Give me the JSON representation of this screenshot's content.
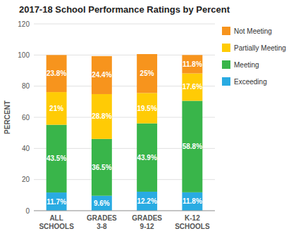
{
  "chart_data": {
    "type": "bar",
    "stacked": true,
    "title": "2017-18 School Performance Ratings by Percent",
    "y_label": "PERCENT",
    "categories": [
      "ALL\nSCHOOLS",
      "GRADES\n3-8",
      "GRADES\n9-12",
      "K-12\nSCHOOLS"
    ],
    "series": [
      {
        "name": "Exceeding",
        "color": "#29ABE2",
        "values": [
          11.7,
          9.6,
          12.2,
          11.8
        ],
        "value_labels": [
          "11.7%",
          "9.6%",
          "12.2%",
          "11.8%"
        ]
      },
      {
        "name": "Meeting",
        "color": "#39B54A",
        "values": [
          43.5,
          36.5,
          43.9,
          58.8
        ],
        "value_labels": [
          "43.5%",
          "36.5%",
          "43.9%",
          "58.8%"
        ]
      },
      {
        "name": "Partially Meeting",
        "color": "#FFCB05",
        "values": [
          21.0,
          28.8,
          19.5,
          17.6
        ],
        "value_labels": [
          "21%",
          "28.8%",
          "19.5%",
          "17.6%"
        ]
      },
      {
        "name": "Not Meeting",
        "color": "#F7941D",
        "values": [
          23.8,
          24.4,
          25.0,
          11.8
        ],
        "value_labels": [
          "23.8%",
          "24.4%",
          "25%",
          "11.8%"
        ]
      }
    ],
    "ylim": [
      0,
      120
    ],
    "yticks": [
      0,
      20,
      40,
      60,
      80,
      100,
      120
    ],
    "grid": true,
    "legend": "right",
    "data_labels": true
  }
}
